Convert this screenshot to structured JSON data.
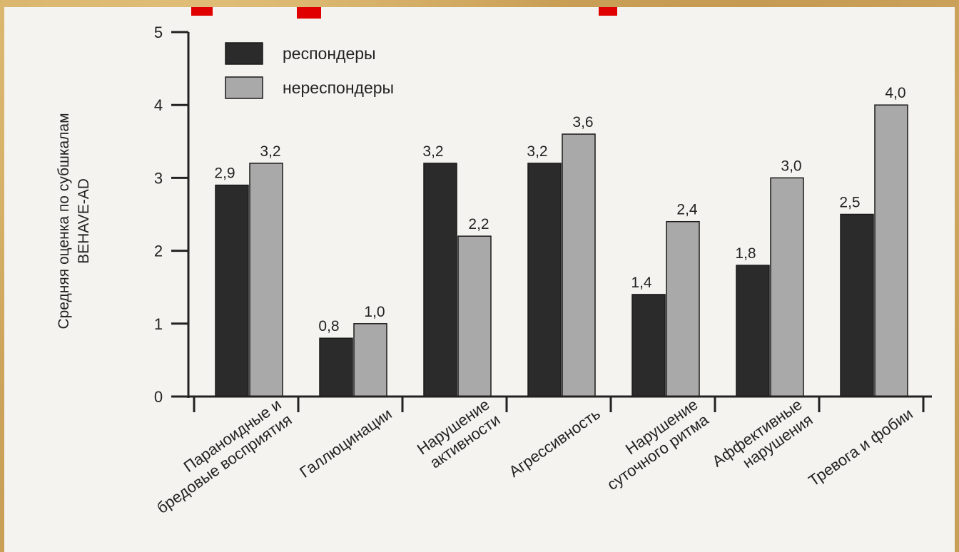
{
  "chart_data": {
    "type": "bar",
    "ylabel": "Средняя оценка по субшкалам BEHAVE-AD",
    "ylabel_lines": [
      "Средняя оценка по субшкалам",
      "BEHAVE-AD"
    ],
    "ylim": [
      0,
      5
    ],
    "yticks": [
      "0",
      "1",
      "2",
      "3",
      "4",
      "5"
    ],
    "legend_position": "top-left",
    "grid": false,
    "categories": [
      [
        "Параноидные и",
        "бредовые восприятия"
      ],
      [
        "Галлюцинации"
      ],
      [
        "Нарушение",
        "активности"
      ],
      [
        "Агрессивность"
      ],
      [
        "Нарушение",
        "суточного ритма"
      ],
      [
        "Аффективные",
        "нарушения"
      ],
      [
        "Тревога и фобии"
      ]
    ],
    "series": [
      {
        "name": "респондеры",
        "color": "#2b2b2b",
        "values": [
          2.9,
          0.8,
          3.2,
          3.2,
          1.4,
          1.8,
          2.5
        ],
        "labels": [
          "2,9",
          "0,8",
          "3,2",
          "3,2",
          "1,4",
          "1,8",
          "2,5"
        ]
      },
      {
        "name": "нереспондеры",
        "color": "#a9a9a9",
        "values": [
          3.2,
          1.0,
          2.2,
          3.6,
          2.4,
          3.0,
          4.0
        ],
        "labels": [
          "3,2",
          "1,0",
          "2,2",
          "3,6",
          "2,4",
          "3,0",
          "4,0"
        ]
      }
    ]
  }
}
